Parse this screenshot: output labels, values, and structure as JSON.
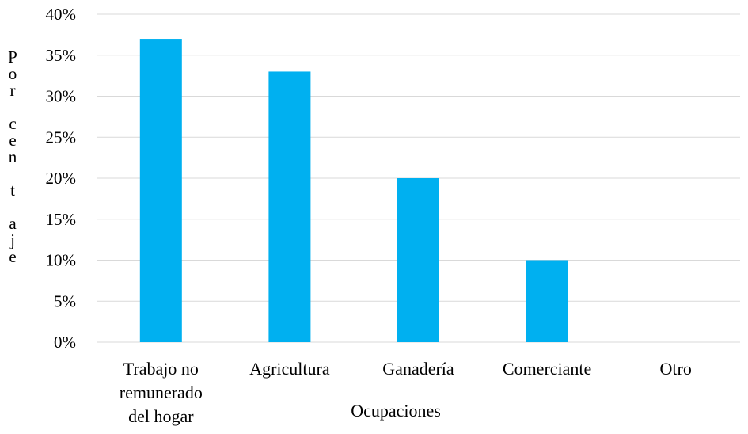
{
  "chart_data": {
    "type": "bar",
    "categories": [
      "Trabajo no\nremunerado\ndel hogar",
      "Agricultura",
      "Ganadería",
      "Comerciante",
      "Otro"
    ],
    "values": [
      37,
      33,
      20,
      10,
      0
    ],
    "value_unit": "%",
    "ylim": [
      0,
      40
    ],
    "yticks": [
      "0%",
      "5%",
      "10%",
      "15%",
      "20%",
      "25%",
      "30%",
      "35%",
      "40%"
    ],
    "xlabel": "Ocupaciones",
    "ylabel": "Porcentaje",
    "ylabel_display": "P\no\nr\n \nc\ne\nn\n \nt\n \na\nj\ne",
    "grid": true,
    "colors": {
      "bar": "#00b0f0",
      "grid": "#d9d9d9"
    }
  }
}
